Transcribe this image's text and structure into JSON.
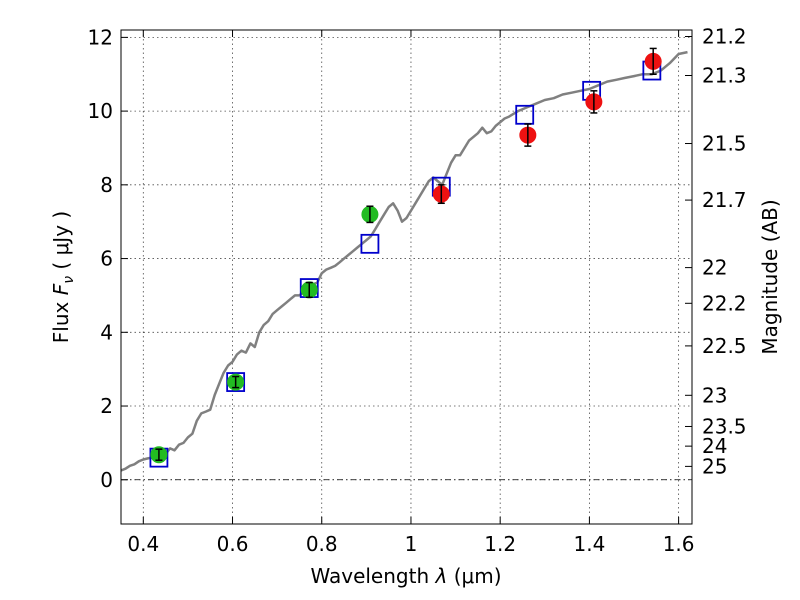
{
  "chart_data": {
    "type": "scatter",
    "xlabel": "Wavelength",
    "xlabel_symbol": "λ",
    "xlabel_unit": "(μm)",
    "ylabel": "Flux",
    "ylabel_symbol": "F",
    "ylabel_sub": "ν",
    "ylabel_unit": "( μJy )",
    "y2label": "Magnitude (AB)",
    "xlim": [
      0.35,
      1.63
    ],
    "ylim": [
      -1.2,
      12.2
    ],
    "grid": true,
    "x_ticks": [
      {
        "value": 0.4,
        "label": "0.4"
      },
      {
        "value": 0.6,
        "label": "0.6"
      },
      {
        "value": 0.8,
        "label": "0.8"
      },
      {
        "value": 1.0,
        "label": "1"
      },
      {
        "value": 1.2,
        "label": "1.2"
      },
      {
        "value": 1.4,
        "label": "1.4"
      },
      {
        "value": 1.6,
        "label": "1.6"
      }
    ],
    "y_ticks": [
      {
        "value": 0,
        "label": "0"
      },
      {
        "value": 2,
        "label": "2"
      },
      {
        "value": 4,
        "label": "4"
      },
      {
        "value": 6,
        "label": "6"
      },
      {
        "value": 8,
        "label": "8"
      },
      {
        "value": 10,
        "label": "10"
      },
      {
        "value": 12,
        "label": "12"
      }
    ],
    "y2_ticks": [
      {
        "mag": 21.2,
        "label": "21.2"
      },
      {
        "mag": 21.3,
        "label": "21.3"
      },
      {
        "mag": 21.5,
        "label": "21.5"
      },
      {
        "mag": 21.7,
        "label": "21.7"
      },
      {
        "mag": 22,
        "label": "22"
      },
      {
        "mag": 22.2,
        "label": "22.2"
      },
      {
        "mag": 22.5,
        "label": "22.5"
      },
      {
        "mag": 23,
        "label": "23"
      },
      {
        "mag": 23.5,
        "label": "23.5"
      },
      {
        "mag": 24,
        "label": "24"
      },
      {
        "mag": 25,
        "label": "25"
      }
    ],
    "model_spectrum": {
      "color": "#808080",
      "points": [
        [
          0.35,
          0.25
        ],
        [
          0.36,
          0.3
        ],
        [
          0.37,
          0.38
        ],
        [
          0.38,
          0.42
        ],
        [
          0.39,
          0.5
        ],
        [
          0.4,
          0.55
        ],
        [
          0.41,
          0.58
        ],
        [
          0.42,
          0.6
        ],
        [
          0.43,
          0.65
        ],
        [
          0.44,
          0.6
        ],
        [
          0.45,
          0.7
        ],
        [
          0.46,
          0.85
        ],
        [
          0.47,
          0.8
        ],
        [
          0.48,
          0.95
        ],
        [
          0.49,
          1.0
        ],
        [
          0.5,
          1.15
        ],
        [
          0.51,
          1.25
        ],
        [
          0.52,
          1.6
        ],
        [
          0.53,
          1.8
        ],
        [
          0.54,
          1.85
        ],
        [
          0.55,
          1.9
        ],
        [
          0.56,
          2.3
        ],
        [
          0.57,
          2.6
        ],
        [
          0.58,
          2.9
        ],
        [
          0.59,
          3.1
        ],
        [
          0.6,
          3.2
        ],
        [
          0.61,
          3.4
        ],
        [
          0.62,
          3.5
        ],
        [
          0.63,
          3.45
        ],
        [
          0.64,
          3.7
        ],
        [
          0.65,
          3.6
        ],
        [
          0.66,
          4.0
        ],
        [
          0.67,
          4.2
        ],
        [
          0.68,
          4.3
        ],
        [
          0.69,
          4.5
        ],
        [
          0.7,
          4.6
        ],
        [
          0.71,
          4.7
        ],
        [
          0.72,
          4.8
        ],
        [
          0.73,
          4.9
        ],
        [
          0.74,
          5.0
        ],
        [
          0.75,
          5.0
        ],
        [
          0.76,
          5.1
        ],
        [
          0.77,
          5.2
        ],
        [
          0.78,
          5.3
        ],
        [
          0.79,
          5.35
        ],
        [
          0.8,
          5.6
        ],
        [
          0.81,
          5.7
        ],
        [
          0.82,
          5.75
        ],
        [
          0.83,
          5.8
        ],
        [
          0.84,
          5.9
        ],
        [
          0.85,
          6.0
        ],
        [
          0.86,
          6.1
        ],
        [
          0.87,
          6.2
        ],
        [
          0.88,
          6.3
        ],
        [
          0.89,
          6.4
        ],
        [
          0.9,
          6.5
        ],
        [
          0.91,
          6.6
        ],
        [
          0.92,
          6.8
        ],
        [
          0.93,
          7.0
        ],
        [
          0.94,
          7.2
        ],
        [
          0.95,
          7.4
        ],
        [
          0.96,
          7.5
        ],
        [
          0.97,
          7.3
        ],
        [
          0.98,
          7.0
        ],
        [
          0.99,
          7.1
        ],
        [
          1.0,
          7.3
        ],
        [
          1.01,
          7.5
        ],
        [
          1.02,
          7.7
        ],
        [
          1.03,
          7.9
        ],
        [
          1.04,
          8.1
        ],
        [
          1.05,
          8.2
        ],
        [
          1.06,
          8.1
        ],
        [
          1.07,
          8.0
        ],
        [
          1.08,
          8.3
        ],
        [
          1.09,
          8.6
        ],
        [
          1.1,
          8.8
        ],
        [
          1.11,
          8.8
        ],
        [
          1.12,
          9.0
        ],
        [
          1.13,
          9.2
        ],
        [
          1.14,
          9.3
        ],
        [
          1.15,
          9.4
        ],
        [
          1.16,
          9.55
        ],
        [
          1.17,
          9.4
        ],
        [
          1.18,
          9.45
        ],
        [
          1.19,
          9.6
        ],
        [
          1.2,
          9.7
        ],
        [
          1.21,
          9.8
        ],
        [
          1.22,
          9.85
        ],
        [
          1.24,
          10.0
        ],
        [
          1.26,
          10.1
        ],
        [
          1.28,
          10.2
        ],
        [
          1.3,
          10.3
        ],
        [
          1.32,
          10.35
        ],
        [
          1.34,
          10.45
        ],
        [
          1.36,
          10.5
        ],
        [
          1.38,
          10.55
        ],
        [
          1.4,
          10.6
        ],
        [
          1.42,
          10.7
        ],
        [
          1.44,
          10.8
        ],
        [
          1.46,
          10.85
        ],
        [
          1.48,
          10.9
        ],
        [
          1.5,
          10.95
        ],
        [
          1.52,
          11.0
        ],
        [
          1.54,
          11.0
        ],
        [
          1.56,
          11.1
        ],
        [
          1.58,
          11.3
        ],
        [
          1.6,
          11.55
        ],
        [
          1.62,
          11.6
        ]
      ]
    },
    "series": [
      {
        "marker": "open-square",
        "color": "#0000cc",
        "points": [
          {
            "x": 0.435,
            "y": 0.6
          },
          {
            "x": 0.607,
            "y": 2.65
          },
          {
            "x": 0.772,
            "y": 5.2
          },
          {
            "x": 0.908,
            "y": 6.4
          },
          {
            "x": 1.068,
            "y": 7.95
          },
          {
            "x": 1.255,
            "y": 9.9
          },
          {
            "x": 1.405,
            "y": 10.55
          },
          {
            "x": 1.54,
            "y": 11.1
          }
        ]
      },
      {
        "marker": "filled-circle",
        "color": "#22bb22",
        "points": [
          {
            "x": 0.435,
            "y": 0.68,
            "err": 0.15
          },
          {
            "x": 0.607,
            "y": 2.65,
            "err": 0.15
          },
          {
            "x": 0.772,
            "y": 5.15,
            "err": 0.2
          },
          {
            "x": 0.908,
            "y": 7.2,
            "err": 0.22
          }
        ]
      },
      {
        "marker": "filled-circle",
        "color": "#ee1111",
        "points": [
          {
            "x": 1.068,
            "y": 7.75,
            "err": 0.25
          },
          {
            "x": 1.262,
            "y": 9.35,
            "err": 0.3
          },
          {
            "x": 1.41,
            "y": 10.25,
            "err": 0.3
          },
          {
            "x": 1.543,
            "y": 11.35,
            "err": 0.35
          }
        ]
      }
    ]
  }
}
